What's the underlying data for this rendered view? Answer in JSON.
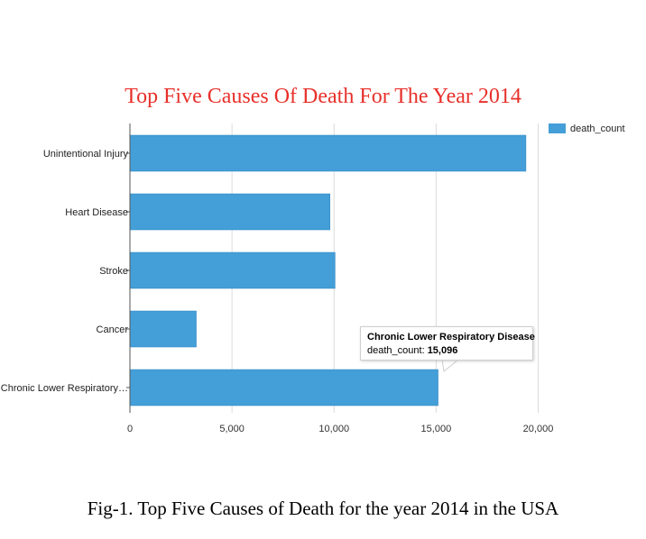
{
  "caption": "Fig-1. Top Five Causes of Death for the year 2014 in the USA",
  "chart_data": {
    "type": "bar",
    "orientation": "horizontal",
    "title": "Top Five Causes Of Death For The Year 2014",
    "categories": [
      "Unintentional Injury",
      "Heart Disease",
      "Stroke",
      "Cancer",
      "Chronic Lower Respiratory…"
    ],
    "series": [
      {
        "name": "death_count",
        "values": [
          19400,
          9800,
          10050,
          3250,
          15096
        ]
      }
    ],
    "xlim": [
      0,
      20000
    ],
    "xticks": [
      "0",
      "5,000",
      "10,000",
      "15,000",
      "20,000"
    ],
    "grid": true,
    "legend_position": "top-right",
    "bar_color": "#449ed7",
    "title_color": "#e8302a",
    "tooltip": {
      "title": "Chronic Lower Respiratory Disease",
      "label": "death_count",
      "value": "15,096"
    }
  }
}
